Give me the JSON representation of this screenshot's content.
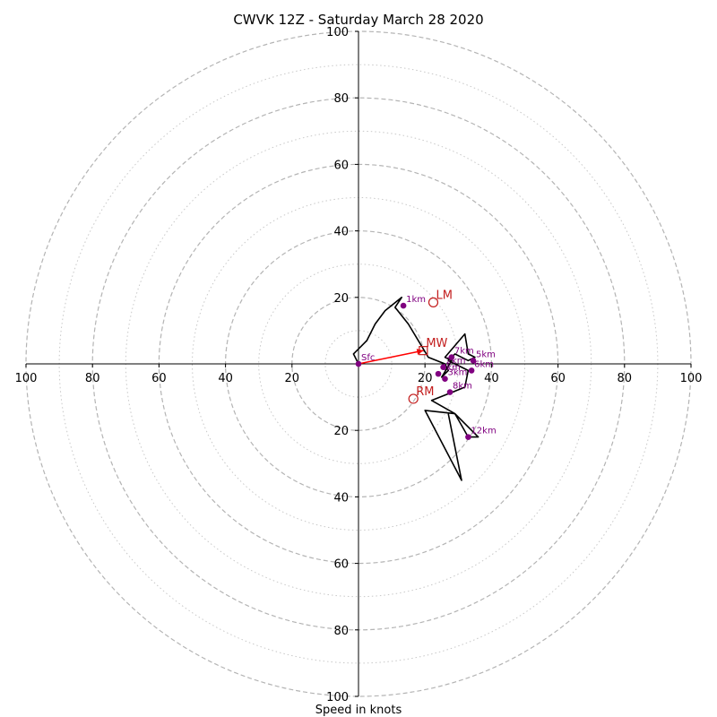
{
  "chart_data": {
    "type": "hodograph",
    "title": "CWVK 12Z - Saturday March 28 2020",
    "xlabel": "Speed in knots",
    "ylabel": "",
    "xlim": [
      -100,
      100
    ],
    "ylim": [
      -100,
      100
    ],
    "ring_major": [
      20,
      40,
      60,
      80,
      100
    ],
    "ring_minor": [
      10,
      30,
      50,
      70,
      90
    ],
    "x_ticks": [
      {
        "value": -100,
        "label": "100"
      },
      {
        "value": -80,
        "label": "80"
      },
      {
        "value": -60,
        "label": "60"
      },
      {
        "value": -40,
        "label": "40"
      },
      {
        "value": -20,
        "label": "20"
      },
      {
        "value": 20,
        "label": "20"
      },
      {
        "value": 40,
        "label": "40"
      },
      {
        "value": 60,
        "label": "60"
      },
      {
        "value": 80,
        "label": "80"
      },
      {
        "value": 100,
        "label": "100"
      }
    ],
    "y_ticks": [
      {
        "value": 100,
        "label": "100"
      },
      {
        "value": 80,
        "label": "80"
      },
      {
        "value": 60,
        "label": "60"
      },
      {
        "value": 40,
        "label": "40"
      },
      {
        "value": 20,
        "label": "20"
      },
      {
        "value": -20,
        "label": "20"
      },
      {
        "value": -40,
        "label": "40"
      },
      {
        "value": -60,
        "label": "60"
      },
      {
        "value": -80,
        "label": "80"
      },
      {
        "value": -100,
        "label": "100"
      }
    ],
    "hodograph": {
      "units": "knots",
      "color": "#000000",
      "u": [
        0,
        -1.5,
        2.5,
        5,
        8,
        13,
        11,
        15,
        21,
        26,
        27,
        25,
        28,
        26,
        32,
        33,
        35,
        33,
        29,
        27,
        33,
        32,
        22,
        29,
        36,
        33,
        29,
        20,
        31,
        27
      ],
      "v": [
        0,
        3,
        7,
        12,
        16,
        20,
        17,
        12,
        2,
        0,
        -2,
        -4,
        1,
        2,
        9,
        3,
        2,
        1,
        3,
        1,
        -2,
        -7,
        -11,
        -15,
        -22,
        -22,
        -15,
        -14,
        -35,
        -15
      ]
    },
    "height_markers": [
      {
        "label": "Sfc",
        "u": 0,
        "v": 0
      },
      {
        "label": "1km",
        "u": 13.5,
        "v": 17.5
      },
      {
        "label": "2km",
        "u": 25.5,
        "v": -1
      },
      {
        "label": "3km",
        "u": 26,
        "v": -4.5
      },
      {
        "label": "4km",
        "u": 24,
        "v": -3
      },
      {
        "label": "5km",
        "u": 34.5,
        "v": 1
      },
      {
        "label": "6km",
        "u": 34,
        "v": -2
      },
      {
        "label": "7km",
        "u": 28,
        "v": 2
      },
      {
        "label": "8km",
        "u": 27.5,
        "v": -8.5
      },
      {
        "label": "12km",
        "u": 33,
        "v": -22
      }
    ],
    "marker_color": "#800080",
    "storm_motion": [
      {
        "label": "LM",
        "u": 22.5,
        "v": 18.5,
        "shape": "circle"
      },
      {
        "label": "MW",
        "u": 19.5,
        "v": 4,
        "shape": "square"
      },
      {
        "label": "RM",
        "u": 16.5,
        "v": -10.5,
        "shape": "circle"
      }
    ],
    "storm_motion_color": "#c31d1d",
    "mean_wind_vector": {
      "u": 19.5,
      "v": 4,
      "color": "#ff0000"
    }
  }
}
